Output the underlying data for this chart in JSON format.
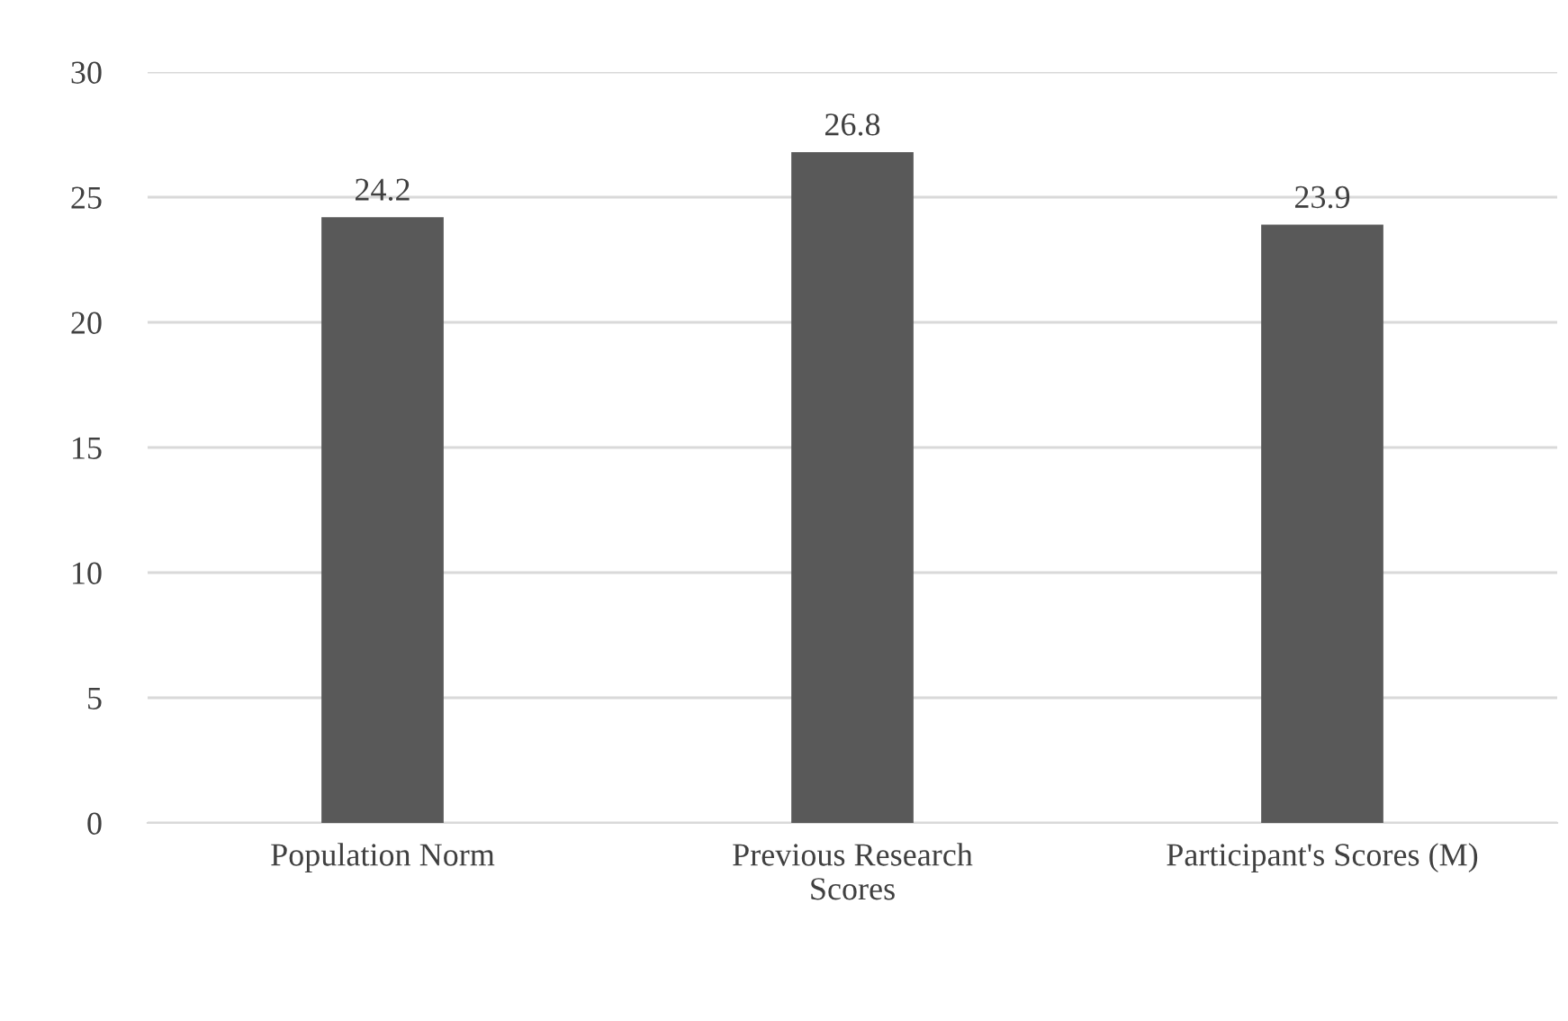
{
  "chart_data": {
    "type": "bar",
    "categories": [
      "Population Norm",
      "Previous Research\nScores",
      "Participant's Scores (M)"
    ],
    "values": [
      24.2,
      26.8,
      23.9
    ],
    "color": "#595959",
    "ylim": [
      0,
      30
    ],
    "yticks": [
      0,
      5,
      10,
      15,
      20,
      25,
      30
    ],
    "grid": "y",
    "data_labels": true,
    "legend": false
  }
}
